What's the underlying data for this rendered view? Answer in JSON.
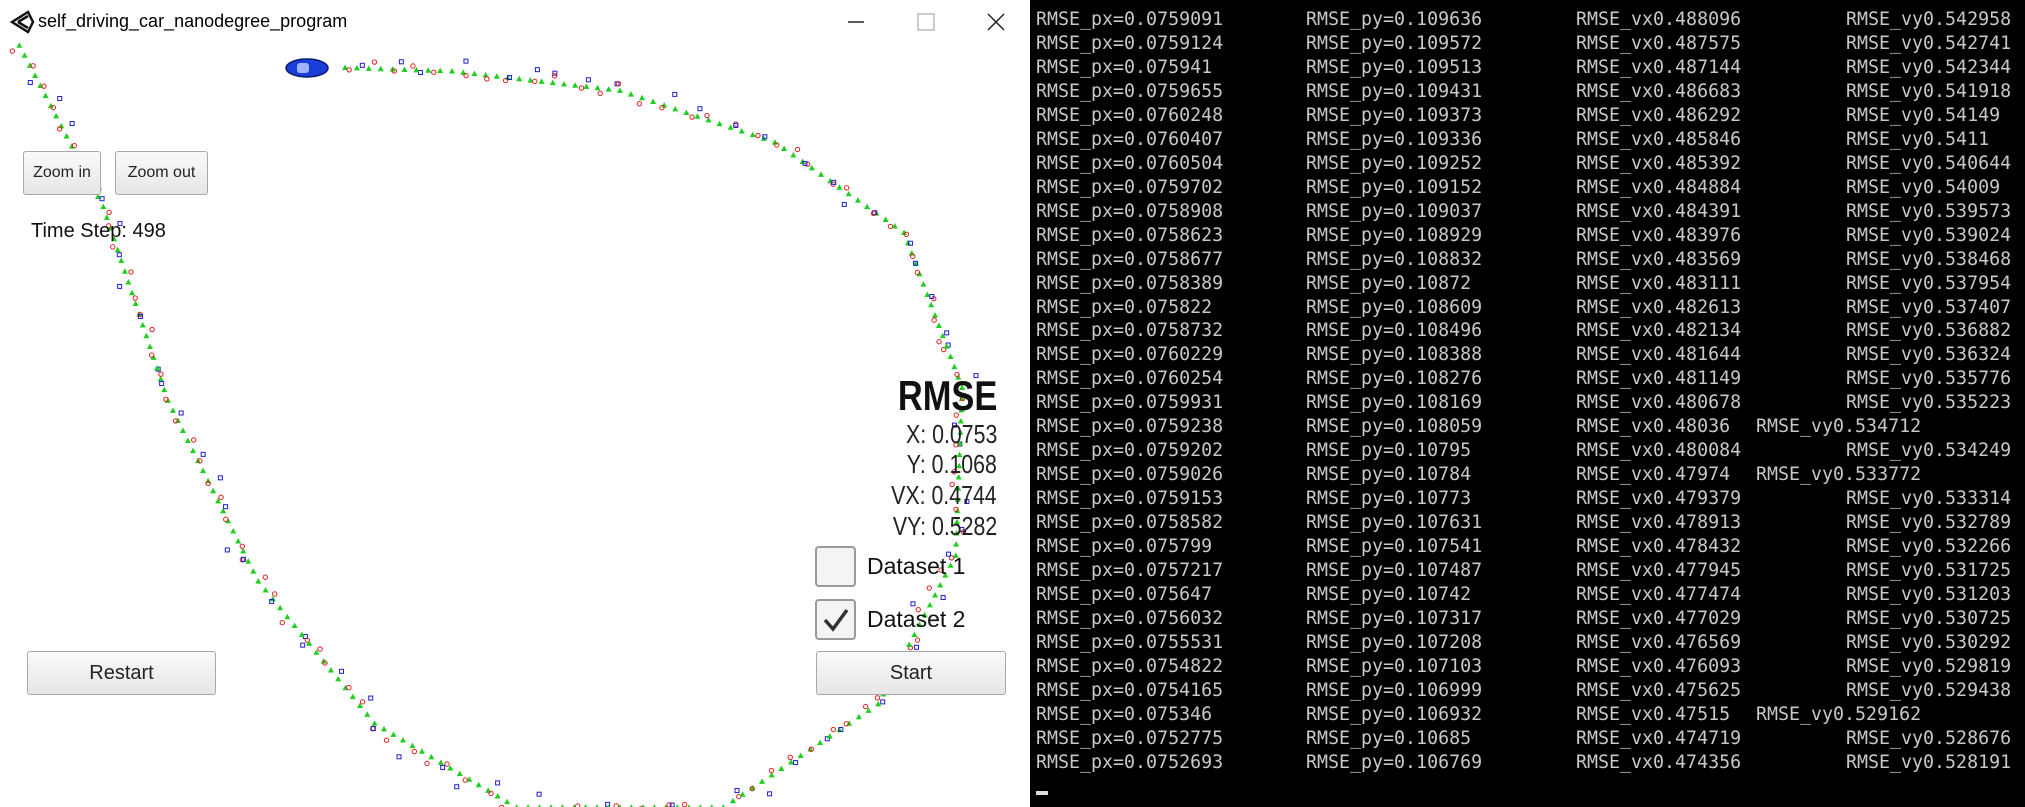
{
  "window": {
    "title": "self_driving_car_nanodegree_program",
    "buttons": {
      "zoom_in": "Zoom in",
      "zoom_out": "Zoom out",
      "restart": "Restart",
      "start": "Start"
    },
    "time_step": "Time Step: 498",
    "rmse": {
      "heading": "RMSE",
      "x": "X: 0.0753",
      "y": "Y: 0.1068",
      "vx": "VX: 0.4744",
      "vy": "VY: 0.5282"
    },
    "datasets": [
      {
        "label": "Dataset 1",
        "checked": false
      },
      {
        "label": "Dataset 2",
        "checked": true
      }
    ]
  },
  "terminal": {
    "rows": [
      [
        "RMSE_px=0.0759091",
        "RMSE_py=0.109636",
        "RMSE_vx0.488096",
        "RMSE_vy0.542958"
      ],
      [
        "RMSE_px=0.0759124",
        "RMSE_py=0.109572",
        "RMSE_vx0.487575",
        "RMSE_vy0.542741"
      ],
      [
        "RMSE_px=0.075941",
        "RMSE_py=0.109513",
        "RMSE_vx0.487144",
        "RMSE_vy0.542344"
      ],
      [
        "RMSE_px=0.0759655",
        "RMSE_py=0.109431",
        "RMSE_vx0.486683",
        "RMSE_vy0.541918"
      ],
      [
        "RMSE_px=0.0760248",
        "RMSE_py=0.109373",
        "RMSE_vx0.486292",
        "RMSE_vy0.54149"
      ],
      [
        "RMSE_px=0.0760407",
        "RMSE_py=0.109336",
        "RMSE_vx0.485846",
        "RMSE_vy0.5411"
      ],
      [
        "RMSE_px=0.0760504",
        "RMSE_py=0.109252",
        "RMSE_vx0.485392",
        "RMSE_vy0.540644"
      ],
      [
        "RMSE_px=0.0759702",
        "RMSE_py=0.109152",
        "RMSE_vx0.484884",
        "RMSE_vy0.54009"
      ],
      [
        "RMSE_px=0.0758908",
        "RMSE_py=0.109037",
        "RMSE_vx0.484391",
        "RMSE_vy0.539573"
      ],
      [
        "RMSE_px=0.0758623",
        "RMSE_py=0.108929",
        "RMSE_vx0.483976",
        "RMSE_vy0.539024"
      ],
      [
        "RMSE_px=0.0758677",
        "RMSE_py=0.108832",
        "RMSE_vx0.483569",
        "RMSE_vy0.538468"
      ],
      [
        "RMSE_px=0.0758389",
        "RMSE_py=0.10872",
        "RMSE_vx0.483111",
        "RMSE_vy0.537954"
      ],
      [
        "RMSE_px=0.075822",
        "RMSE_py=0.108609",
        "RMSE_vx0.482613",
        "RMSE_vy0.537407"
      ],
      [
        "RMSE_px=0.0758732",
        "RMSE_py=0.108496",
        "RMSE_vx0.482134",
        "RMSE_vy0.536882"
      ],
      [
        "RMSE_px=0.0760229",
        "RMSE_py=0.108388",
        "RMSE_vx0.481644",
        "RMSE_vy0.536324"
      ],
      [
        "RMSE_px=0.0760254",
        "RMSE_py=0.108276",
        "RMSE_vx0.481149",
        "RMSE_vy0.535776"
      ],
      [
        "RMSE_px=0.0759931",
        "RMSE_py=0.108169",
        "RMSE_vx0.480678",
        "RMSE_vy0.535223"
      ],
      [
        "RMSE_px=0.0759238",
        "RMSE_py=0.108059",
        "RMSE_vx0.48036",
        "RMSE_vy0.534712"
      ],
      [
        "RMSE_px=0.0759202",
        "RMSE_py=0.10795",
        "RMSE_vx0.480084",
        "RMSE_vy0.534249"
      ],
      [
        "RMSE_px=0.0759026",
        "RMSE_py=0.10784",
        "RMSE_vx0.47974",
        "RMSE_vy0.533772"
      ],
      [
        "RMSE_px=0.0759153",
        "RMSE_py=0.10773",
        "RMSE_vx0.479379",
        "RMSE_vy0.533314"
      ],
      [
        "RMSE_px=0.0758582",
        "RMSE_py=0.107631",
        "RMSE_vx0.478913",
        "RMSE_vy0.532789"
      ],
      [
        "RMSE_px=0.075799",
        "RMSE_py=0.107541",
        "RMSE_vx0.478432",
        "RMSE_vy0.532266"
      ],
      [
        "RMSE_px=0.0757217",
        "RMSE_py=0.107487",
        "RMSE_vx0.477945",
        "RMSE_vy0.531725"
      ],
      [
        "RMSE_px=0.075647",
        "RMSE_py=0.10742",
        "RMSE_vx0.477474",
        "RMSE_vy0.531203"
      ],
      [
        "RMSE_px=0.0756032",
        "RMSE_py=0.107317",
        "RMSE_vx0.477029",
        "RMSE_vy0.530725"
      ],
      [
        "RMSE_px=0.0755531",
        "RMSE_py=0.107208",
        "RMSE_vx0.476569",
        "RMSE_vy0.530292"
      ],
      [
        "RMSE_px=0.0754822",
        "RMSE_py=0.107103",
        "RMSE_vx0.476093",
        "RMSE_vy0.529819"
      ],
      [
        "RMSE_px=0.0754165",
        "RMSE_py=0.106999",
        "RMSE_vx0.475625",
        "RMSE_vy0.529438"
      ],
      [
        "RMSE_px=0.075346",
        "RMSE_py=0.106932",
        "RMSE_vx0.47515",
        "RMSE_vy0.529162"
      ],
      [
        "RMSE_px=0.0752775",
        "RMSE_py=0.10685",
        "RMSE_vx0.474719",
        "RMSE_vy0.528676"
      ],
      [
        "RMSE_px=0.0752693",
        "RMSE_py=0.106769",
        "RMSE_vx0.474356",
        "RMSE_vy0.528191"
      ]
    ]
  }
}
